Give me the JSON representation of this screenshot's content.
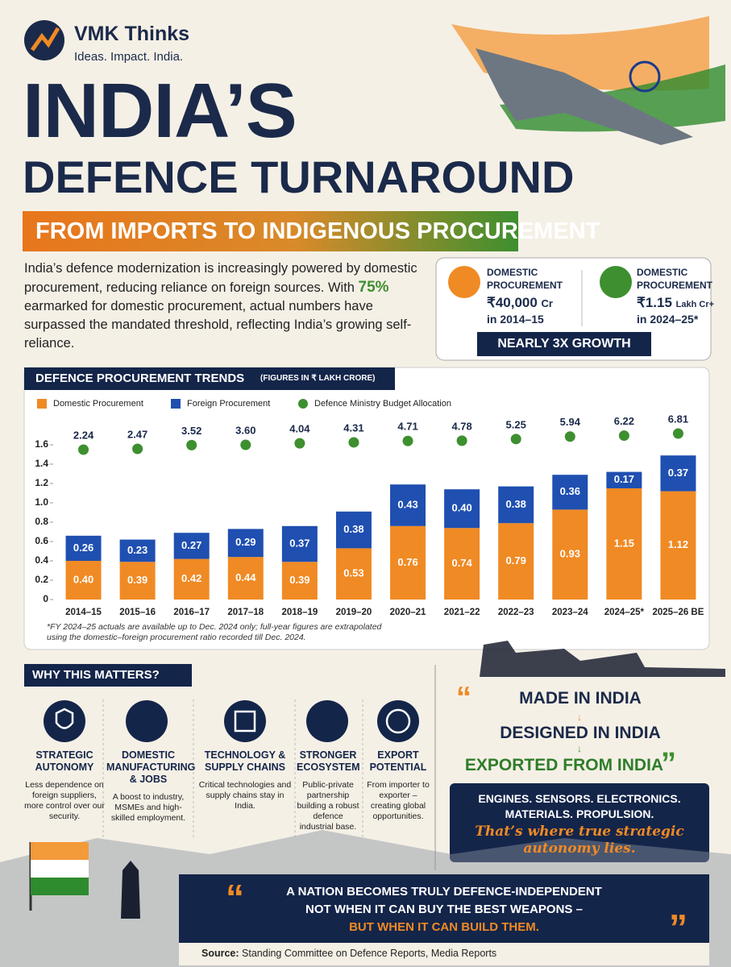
{
  "brand": {
    "name": "VMK Thinks",
    "tagline": "Ideas. Impact. India."
  },
  "title_line1": "INDIA’S",
  "title_line2": "DEFENCE TURNAROUND",
  "subtitle": "FROM IMPORTS TO INDIGENOUS PROCUREMENT",
  "intro": {
    "before": "India’s defence modernization is increasingly powered by domestic procurement, reducing reliance on foreign sources. With ",
    "highlight": "75%",
    "after": " earmarked for domestic procurement, actual numbers have surpassed the mandated threshold, reflecting India’s growing self-reliance."
  },
  "stats": [
    {
      "label": "DOMESTIC PROCUREMENT",
      "value": "₹40,000",
      "unit": "Cr",
      "period": "in 2014–15"
    },
    {
      "label": "DOMESTIC PROCUREMENT",
      "value": "₹1.15",
      "unit": "Lakh Cr+",
      "period": "in 2024–25*"
    }
  ],
  "growth": "NEARLY 3X GROWTH",
  "chart_data": {
    "type": "bar",
    "stacked": true,
    "title": "DEFENCE PROCUREMENT TRENDS",
    "subtitle": "(FIGURES IN ₹ LAKH CRORE)",
    "categories": [
      "2014–15",
      "2015–16",
      "2016–17",
      "2017–18",
      "2018–19",
      "2019–20",
      "2020–21",
      "2021–22",
      "2022–23",
      "2023–24",
      "2024–25*",
      "2025–26 BE"
    ],
    "series": [
      {
        "name": "Domestic Procurement",
        "color": "#f08a24",
        "values": [
          0.4,
          0.39,
          0.42,
          0.44,
          0.39,
          0.53,
          0.76,
          0.74,
          0.79,
          0.93,
          1.15,
          1.12
        ],
        "value_labels": [
          "0.40",
          "0.39",
          "0.42",
          "0.44",
          "0.39",
          "0.53",
          "0.76",
          "0.74",
          "0.79",
          "0.93",
          "1.15",
          "1.12"
        ]
      },
      {
        "name": "Foreign Procurement",
        "color": "#1f4fb0",
        "values": [
          0.26,
          0.23,
          0.27,
          0.29,
          0.37,
          0.38,
          0.43,
          0.4,
          0.38,
          0.36,
          0.17,
          0.37
        ],
        "value_labels": [
          "0.26",
          "0.23",
          "0.27",
          "0.29",
          "0.37",
          "0.38",
          "0.43",
          "0.40",
          "0.38",
          "0.36",
          "0.17",
          "0.37"
        ]
      },
      {
        "name": "Defence Ministry Budget Allocation",
        "color": "#3d8f2f",
        "type": "scatter",
        "values": [
          2.24,
          2.47,
          3.52,
          3.6,
          4.04,
          4.31,
          4.71,
          4.78,
          5.25,
          5.94,
          6.22,
          6.81
        ],
        "value_labels": [
          "2.24",
          "2.47",
          "3.52",
          "3.60",
          "4.04",
          "4.31",
          "4.71",
          "4.78",
          "5.25",
          "5.94",
          "6.22",
          "6.81"
        ]
      }
    ],
    "ylim": [
      0,
      1.6
    ],
    "yticks": [
      0,
      0.2,
      0.4,
      0.6,
      0.8,
      {
        "value": 1,
        "label": "1.0"
      },
      1.2,
      1.4,
      1.6
    ],
    "grid": false,
    "note": "*FY 2024–25 actuals are available up to Dec. 2024 only; full-year figures are extrapolated using the domestic–foreign procurement ratio recorded till Dec. 2024."
  },
  "why": {
    "title": "WHY THIS MATTERS?",
    "items": [
      {
        "title": "STRATEGIC AUTONOMY",
        "text": "Less dependence on foreign suppliers, more control over our security."
      },
      {
        "title": "DOMESTIC MANUFACTURING & JOBS",
        "text": "A boost to industry, MSMEs and high-skilled employment."
      },
      {
        "title": "TECHNOLOGY & SUPPLY CHAINS",
        "text": "Critical technologies and supply chains stay in India."
      },
      {
        "title": "STRONGER ECOSYSTEM",
        "text": "Public-private partnership building a robust defence industrial base."
      },
      {
        "title": "EXPORT POTENTIAL",
        "text": "From importer to exporter – creating global opportunities."
      }
    ]
  },
  "made": [
    "MADE IN INDIA",
    "DESIGNED IN INDIA",
    "EXPORTED FROM INDIA"
  ],
  "tech": "ENGINES. SENSORS. ELECTRONICS. MATERIALS. PROPULSION.",
  "autonomy": "That’s where true strategic autonomy lies.",
  "quote": [
    "A NATION BECOMES TRULY DEFENCE-INDEPENDENT",
    "NOT WHEN IT CAN BUY THE BEST WEAPONS –",
    "BUT WHEN IT CAN BUILD THEM."
  ],
  "source": {
    "label": "Source:",
    "text": "Standing Committee on Defence Reports, Media Reports"
  }
}
